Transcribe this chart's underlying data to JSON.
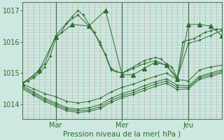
{
  "bg_color": "#cce8e0",
  "line_color": "#2d6e2d",
  "text_color": "#2d6e2d",
  "xlabel": "Pression niveau de la mer( hPa )",
  "yticks": [
    1014,
    1015,
    1016,
    1017
  ],
  "ylim": [
    1013.55,
    1017.25
  ],
  "xlim": [
    0,
    108
  ],
  "xtick_positions": [
    18,
    54,
    90
  ],
  "xtick_labels": [
    "Mar",
    "Mer",
    "Jeu"
  ],
  "vlines": [
    18,
    54,
    90
  ],
  "series": [
    {
      "x": [
        0,
        3,
        6,
        9,
        12,
        15,
        18,
        21,
        24,
        27,
        30,
        33,
        36,
        39,
        42,
        45,
        48,
        51,
        54,
        57,
        60,
        63,
        66,
        69,
        72,
        75,
        78,
        81,
        84,
        87,
        90,
        93,
        96,
        99,
        102,
        105,
        108
      ],
      "y": [
        1014.7,
        1014.75,
        1014.85,
        1015.0,
        1015.2,
        1015.55,
        1016.1,
        1016.3,
        1016.6,
        1016.8,
        1017.0,
        1016.85,
        1016.55,
        1016.3,
        1015.9,
        1015.6,
        1015.15,
        1015.05,
        1015.0,
        1015.1,
        1015.2,
        1015.3,
        1015.4,
        1015.45,
        1015.5,
        1015.45,
        1015.3,
        1015.2,
        1014.85,
        1016.0,
        1016.05,
        1016.1,
        1016.2,
        1016.3,
        1016.35,
        1016.4,
        1016.4
      ],
      "marker": "+"
    },
    {
      "x": [
        0,
        6,
        12,
        18,
        24,
        30,
        36,
        42,
        48,
        54,
        60,
        66,
        72,
        78,
        84,
        90,
        96,
        102,
        108
      ],
      "y": [
        1014.7,
        1014.9,
        1015.3,
        1016.2,
        1016.6,
        1016.85,
        1016.5,
        1016.0,
        1015.1,
        1015.0,
        1015.15,
        1015.3,
        1015.4,
        1015.25,
        1014.85,
        1015.95,
        1016.05,
        1016.2,
        1016.35
      ],
      "marker": "+"
    },
    {
      "x": [
        0,
        9,
        18,
        27,
        36,
        45,
        54,
        60,
        66,
        72,
        78,
        84,
        90,
        96,
        102,
        108
      ],
      "y": [
        1014.65,
        1015.1,
        1016.15,
        1016.55,
        1016.5,
        1017.0,
        1014.95,
        1014.95,
        1015.15,
        1015.35,
        1015.25,
        1014.8,
        1016.55,
        1016.55,
        1016.5,
        1016.2
      ],
      "marker": "^"
    },
    {
      "x": [
        0,
        6,
        12,
        18,
        24,
        30,
        36,
        42,
        48,
        54,
        60,
        66,
        72,
        78,
        84,
        90,
        96,
        102,
        108
      ],
      "y": [
        1014.65,
        1014.5,
        1014.35,
        1014.25,
        1014.1,
        1014.05,
        1014.1,
        1014.2,
        1014.4,
        1014.55,
        1014.65,
        1014.78,
        1014.9,
        1015.0,
        1014.8,
        1014.75,
        1015.1,
        1015.2,
        1015.25
      ],
      "marker": "+"
    },
    {
      "x": [
        0,
        6,
        12,
        18,
        24,
        30,
        36,
        42,
        48,
        54,
        60,
        66,
        72,
        78,
        84,
        90,
        96,
        102,
        108
      ],
      "y": [
        1014.6,
        1014.4,
        1014.2,
        1014.05,
        1013.9,
        1013.85,
        1013.9,
        1014.0,
        1014.2,
        1014.35,
        1014.45,
        1014.6,
        1014.72,
        1014.82,
        1014.62,
        1014.6,
        1014.9,
        1015.0,
        1015.1
      ],
      "marker": "+"
    },
    {
      "x": [
        0,
        6,
        12,
        18,
        24,
        30,
        36,
        42,
        48,
        54,
        60,
        66,
        72,
        78,
        84,
        90,
        96,
        102,
        108
      ],
      "y": [
        1014.55,
        1014.35,
        1014.15,
        1014.0,
        1013.85,
        1013.8,
        1013.83,
        1013.93,
        1014.13,
        1014.28,
        1014.38,
        1014.52,
        1014.65,
        1014.75,
        1014.55,
        1014.55,
        1014.85,
        1014.95,
        1015.05
      ],
      "marker": "+"
    },
    {
      "x": [
        0,
        6,
        12,
        18,
        24,
        30,
        36,
        42,
        48,
        54,
        60,
        66,
        72,
        78,
        84,
        90,
        96,
        102,
        108
      ],
      "y": [
        1014.5,
        1014.3,
        1014.1,
        1013.95,
        1013.8,
        1013.75,
        1013.78,
        1013.87,
        1014.07,
        1014.22,
        1014.32,
        1014.45,
        1014.58,
        1014.68,
        1014.48,
        1014.5,
        1014.8,
        1014.9,
        1015.0
      ],
      "marker": "+"
    }
  ]
}
